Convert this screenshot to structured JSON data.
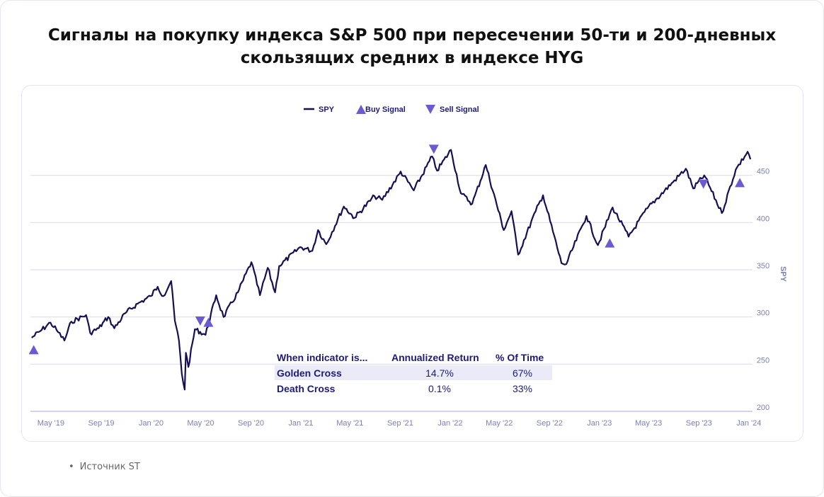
{
  "title": "Сигналы на покупку индекса S&P 500 при пересечении 50-ти и 200-дневных скользящих средних в индексе HYG",
  "source": "Источник ST",
  "colors": {
    "line": "#141052",
    "marker": "#6c5bd0",
    "grid": "#dedcf2",
    "axis_text": "#7b7fb0",
    "table_text": "#1e1a78",
    "highlight": "#ebebf8"
  },
  "chart_data": {
    "type": "line",
    "ylabel": "SPY",
    "ylim": [
      200,
      500
    ],
    "y_ticks": [
      200,
      250,
      300,
      350,
      400,
      450
    ],
    "x_ticks": [
      {
        "label": "May '19",
        "date": "2019-05-01"
      },
      {
        "label": "Sep '19",
        "date": "2019-09-01"
      },
      {
        "label": "Jan '20",
        "date": "2020-01-01"
      },
      {
        "label": "May '20",
        "date": "2020-05-01"
      },
      {
        "label": "Sep '20",
        "date": "2020-09-01"
      },
      {
        "label": "Jan '21",
        "date": "2021-01-01"
      },
      {
        "label": "May '21",
        "date": "2021-05-01"
      },
      {
        "label": "Sep '21",
        "date": "2021-09-01"
      },
      {
        "label": "Jan '22",
        "date": "2022-01-01"
      },
      {
        "label": "May '22",
        "date": "2022-05-01"
      },
      {
        "label": "Sep '22",
        "date": "2022-09-01"
      },
      {
        "label": "Jan '23",
        "date": "2023-01-01"
      },
      {
        "label": "May '23",
        "date": "2023-05-01"
      },
      {
        "label": "Sep '23",
        "date": "2023-09-01"
      },
      {
        "label": "Jan '24",
        "date": "2024-01-01"
      }
    ],
    "legend": [
      "SPY",
      "Buy Signal",
      "Sell Signal"
    ],
    "legend_position": "top",
    "series": [
      {
        "name": "SPY",
        "points": [
          [
            "2019-03-15",
            278
          ],
          [
            "2019-04-05",
            285
          ],
          [
            "2019-04-30",
            294
          ],
          [
            "2019-05-15",
            286
          ],
          [
            "2019-06-03",
            275
          ],
          [
            "2019-06-20",
            295
          ],
          [
            "2019-07-26",
            302
          ],
          [
            "2019-08-05",
            283
          ],
          [
            "2019-08-26",
            288
          ],
          [
            "2019-09-18",
            300
          ],
          [
            "2019-10-03",
            288
          ],
          [
            "2019-10-30",
            304
          ],
          [
            "2019-11-29",
            314
          ],
          [
            "2019-12-31",
            322
          ],
          [
            "2020-01-17",
            332
          ],
          [
            "2020-01-31",
            322
          ],
          [
            "2020-02-19",
            338
          ],
          [
            "2020-02-28",
            296
          ],
          [
            "2020-03-09",
            275
          ],
          [
            "2020-03-16",
            240
          ],
          [
            "2020-03-23",
            223
          ],
          [
            "2020-03-26",
            262
          ],
          [
            "2020-04-01",
            247
          ],
          [
            "2020-04-17",
            287
          ],
          [
            "2020-05-13",
            281
          ],
          [
            "2020-06-08",
            323
          ],
          [
            "2020-06-26",
            300
          ],
          [
            "2020-07-31",
            326
          ],
          [
            "2020-09-02",
            358
          ],
          [
            "2020-09-23",
            323
          ],
          [
            "2020-10-12",
            352
          ],
          [
            "2020-10-30",
            326
          ],
          [
            "2020-11-09",
            354
          ],
          [
            "2020-12-31",
            374
          ],
          [
            "2021-01-29",
            370
          ],
          [
            "2021-02-12",
            392
          ],
          [
            "2021-03-04",
            377
          ],
          [
            "2021-04-16",
            417
          ],
          [
            "2021-05-12",
            405
          ],
          [
            "2021-06-30",
            428
          ],
          [
            "2021-07-19",
            424
          ],
          [
            "2021-08-31",
            452
          ],
          [
            "2021-09-02",
            454
          ],
          [
            "2021-10-04",
            434
          ],
          [
            "2021-11-18",
            470
          ],
          [
            "2021-11-30",
            455
          ],
          [
            "2022-01-03",
            477
          ],
          [
            "2022-01-27",
            431
          ],
          [
            "2022-02-24",
            420
          ],
          [
            "2022-03-29",
            461
          ],
          [
            "2022-05-12",
            392
          ],
          [
            "2022-05-31",
            412
          ],
          [
            "2022-06-16",
            366
          ],
          [
            "2022-07-29",
            412
          ],
          [
            "2022-08-16",
            429
          ],
          [
            "2022-09-30",
            357
          ],
          [
            "2022-10-12",
            356
          ],
          [
            "2022-11-30",
            407
          ],
          [
            "2022-12-28",
            376
          ],
          [
            "2023-02-02",
            416
          ],
          [
            "2023-03-13",
            385
          ],
          [
            "2023-04-28",
            415
          ],
          [
            "2023-06-30",
            443
          ],
          [
            "2023-07-31",
            457
          ],
          [
            "2023-08-18",
            436
          ],
          [
            "2023-09-14",
            450
          ],
          [
            "2023-10-27",
            410
          ],
          [
            "2023-11-30",
            456
          ],
          [
            "2023-12-29",
            475
          ],
          [
            "2024-01-05",
            467
          ]
        ]
      },
      {
        "name": "Buy Signal",
        "marker": "triangle-up",
        "points": [
          [
            "2019-03-20",
            265
          ],
          [
            "2020-05-20",
            294
          ],
          [
            "2023-01-26",
            378
          ],
          [
            "2023-12-10",
            442
          ]
        ]
      },
      {
        "name": "Sell Signal",
        "marker": "triangle-down",
        "points": [
          [
            "2020-04-30",
            296
          ],
          [
            "2021-11-22",
            478
          ],
          [
            "2023-09-12",
            441
          ]
        ]
      }
    ]
  },
  "stats_table": {
    "headers": [
      "When indicator is...",
      "Annualized Return",
      "% Of Time"
    ],
    "rows": [
      [
        "Golden Cross",
        "14.7%",
        "67%"
      ],
      [
        "Death Cross",
        "0.1%",
        "33%"
      ]
    ]
  }
}
